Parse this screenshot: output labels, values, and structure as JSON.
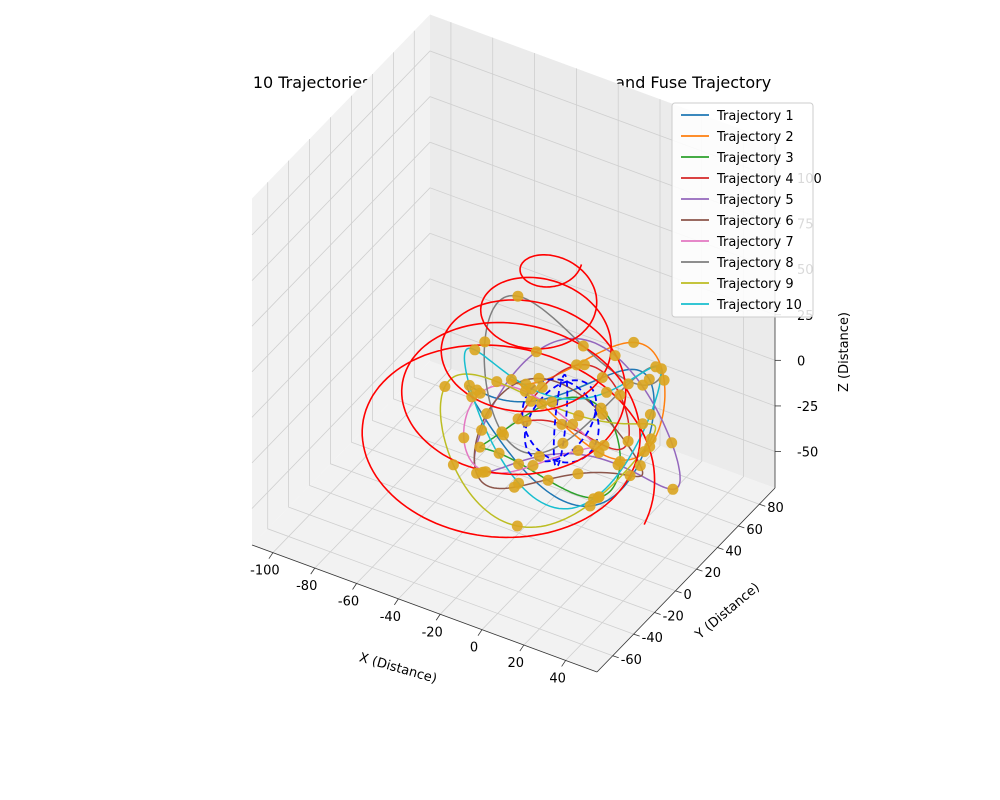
{
  "chart_data": {
    "type": "line",
    "projection": "3d",
    "title": "10 Trajectories with Qubits, CTC Trajectories, and Fuse Trajectory",
    "xlabel": "X (Distance)",
    "ylabel": "Y (Distance)",
    "zlabel": "Z (Distance)",
    "xlim": [
      -110,
      55
    ],
    "ylim": [
      -75,
      95
    ],
    "zlim": [
      -70,
      120
    ],
    "x_ticks": [
      -100,
      -80,
      -60,
      -40,
      -20,
      0,
      20,
      40
    ],
    "y_ticks": [
      -60,
      -40,
      -20,
      0,
      20,
      40,
      60,
      80
    ],
    "z_ticks": [
      -50,
      -25,
      0,
      25,
      50,
      75,
      100
    ],
    "grid": true,
    "legend_position": "top-right",
    "series": [
      {
        "name": "Trajectory 1",
        "color": "#1f77b4",
        "center": [
          0,
          0,
          0
        ],
        "radius": 40,
        "tilt_deg": 0,
        "z_amp": 18,
        "phase": 0.0
      },
      {
        "name": "Trajectory 2",
        "color": "#ff7f0e",
        "center": [
          8,
          10,
          12
        ],
        "radius": 33,
        "tilt_deg": 35,
        "z_amp": 14,
        "phase": 0.6
      },
      {
        "name": "Trajectory 3",
        "color": "#2ca02c",
        "center": [
          -2,
          -6,
          -12
        ],
        "radius": 30,
        "tilt_deg": 70,
        "z_amp": 10,
        "phase": 1.2
      },
      {
        "name": "Trajectory 4",
        "color": "#d62728",
        "center": [
          4,
          4,
          4
        ],
        "radius": 24,
        "tilt_deg": 105,
        "z_amp": 10,
        "phase": 1.8
      },
      {
        "name": "Trajectory 5",
        "color": "#9467bd",
        "center": [
          10,
          -4,
          0
        ],
        "radius": 44,
        "tilt_deg": 140,
        "z_amp": 20,
        "phase": 2.4
      },
      {
        "name": "Trajectory 6",
        "color": "#8c564b",
        "center": [
          -4,
          6,
          -20
        ],
        "radius": 36,
        "tilt_deg": 175,
        "z_amp": 12,
        "phase": 3.0
      },
      {
        "name": "Trajectory 7",
        "color": "#e377c2",
        "center": [
          -10,
          -10,
          -6
        ],
        "radius": 28,
        "tilt_deg": 210,
        "z_amp": 8,
        "phase": 3.6
      },
      {
        "name": "Trajectory 8",
        "color": "#7f7f7f",
        "center": [
          0,
          12,
          18
        ],
        "radius": 38,
        "tilt_deg": 245,
        "z_amp": 22,
        "phase": 4.2
      },
      {
        "name": "Trajectory 9",
        "color": "#bcbd22",
        "center": [
          -6,
          0,
          -14
        ],
        "radius": 46,
        "tilt_deg": 280,
        "z_amp": 16,
        "phase": 4.8
      },
      {
        "name": "Trajectory 10",
        "color": "#17becf",
        "center": [
          2,
          -2,
          8
        ],
        "radius": 42,
        "tilt_deg": 315,
        "z_amp": 24,
        "phase": 5.4
      }
    ],
    "qubits": {
      "color": "#daa520",
      "per_trajectory": 8
    },
    "ctc_trajectories": {
      "color": "#0000ff",
      "style": "dashed",
      "count": 3,
      "radius": 18,
      "center": [
        0,
        0,
        0
      ]
    },
    "fuse_trajectory": {
      "color": "#ff0000",
      "turns": 5,
      "start_radius": 70,
      "end_radius": 10,
      "z_start": -40,
      "z_end": 90,
      "x_shift": -30
    }
  }
}
